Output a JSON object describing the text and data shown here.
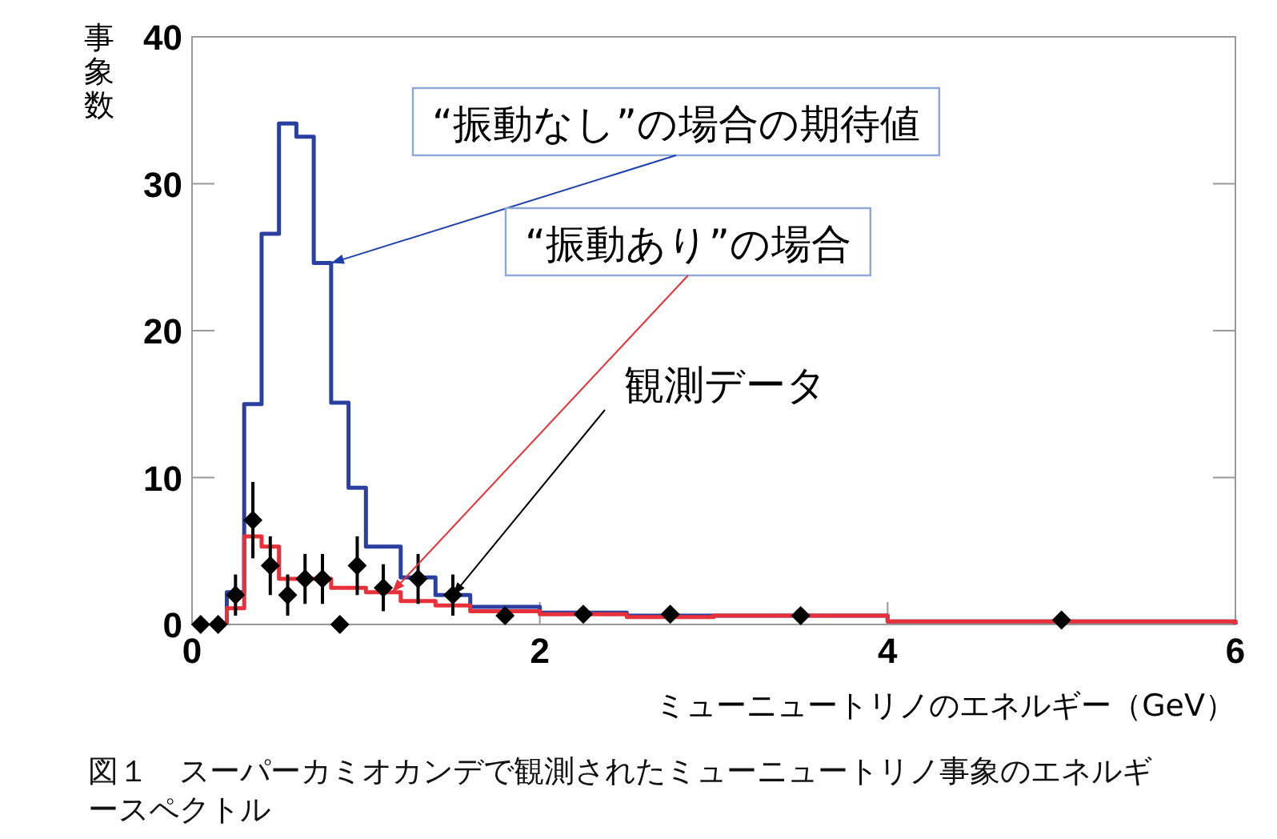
{
  "chart_data": {
    "type": "histogram",
    "xlabel": "ミューニュートリノのエネルギー（GeV）",
    "ylabel": "事象数",
    "bins": [
      0.2,
      0.3,
      0.4,
      0.5,
      0.6,
      0.7,
      0.8,
      0.9,
      1.0,
      1.2,
      1.4,
      1.6,
      2.0,
      2.5,
      3.0,
      4.0,
      6.0
    ],
    "series": [
      {
        "type": "histogram",
        "color": "#2a3fa0",
        "values": [
          2.2,
          15.0,
          26.6,
          34.1,
          33.2,
          24.6,
          15.1,
          9.3,
          5.3,
          3.2,
          2.0,
          1.2,
          0.8,
          0.6,
          0.6,
          0.2
        ]
      },
      {
        "type": "histogram",
        "color": "#e8303a",
        "values": [
          1.1,
          6.0,
          5.3,
          3.1,
          3.1,
          3.1,
          2.5,
          2.5,
          2.2,
          1.6,
          1.3,
          0.9,
          0.7,
          0.5,
          0.6,
          0.2
        ]
      },
      {
        "type": "scatter",
        "color": "#000000",
        "x": [
          0.05,
          0.15,
          0.25,
          0.35,
          0.45,
          0.55,
          0.65,
          0.75,
          0.85,
          0.95,
          1.1,
          1.3,
          1.5,
          1.8,
          2.25,
          2.75,
          3.5,
          5.0
        ],
        "values": [
          0,
          0,
          2.0,
          7.1,
          4.0,
          2.0,
          3.1,
          3.1,
          0,
          4.0,
          2.5,
          3.1,
          2.0,
          0.6,
          0.7,
          0.7,
          0.6,
          0.3
        ],
        "errors": [
          null,
          null,
          1.4,
          2.6,
          2.0,
          1.4,
          1.7,
          1.7,
          null,
          2.0,
          1.6,
          1.7,
          1.4,
          null,
          null,
          null,
          null,
          null
        ]
      }
    ],
    "xlim": [
      0,
      6
    ],
    "ylim": [
      0,
      40
    ],
    "xticks": [
      0,
      2,
      4,
      6
    ],
    "yticks": [
      0,
      10,
      20,
      30,
      40
    ],
    "marker": "diamond",
    "grid": false,
    "annotations": [
      {
        "text": "“振動なし”の場合の期待値",
        "x": 0.8,
        "y": 24.6
      },
      {
        "text": "“振動あり”の場合",
        "x": 1.15,
        "y": 2.2
      },
      {
        "text": "観測データ",
        "x": 1.5,
        "y": 2.0
      },
      "図１　スーパーカミオカンデで観測されたミューニュートリノ事象のエネルギースペクトル"
    ]
  }
}
